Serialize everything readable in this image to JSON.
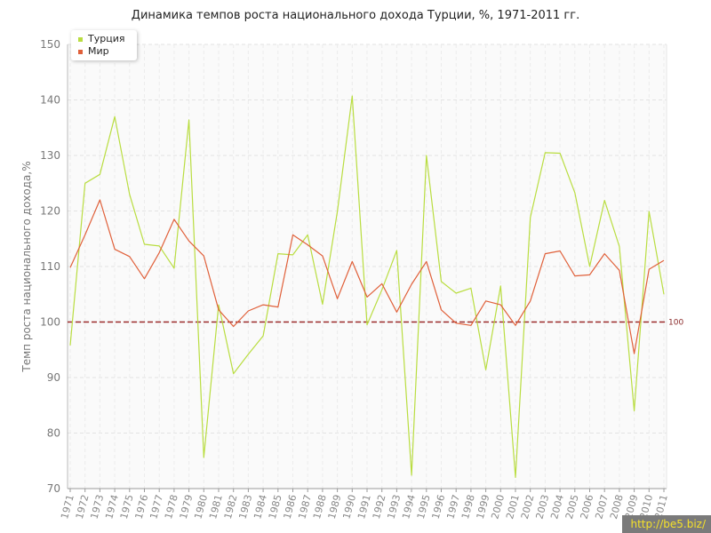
{
  "chart_data": {
    "type": "line",
    "title": "Динамика темпов роста национального дохода Турции, %, 1971-2011 гг.",
    "xlabel": "",
    "ylabel": "Темп роста национального дохода,%",
    "ylim": [
      70,
      150
    ],
    "yticks": [
      70,
      80,
      90,
      100,
      110,
      120,
      130,
      140,
      150
    ],
    "x": [
      1971,
      1972,
      1973,
      1974,
      1975,
      1976,
      1977,
      1978,
      1979,
      1980,
      1981,
      1982,
      1983,
      1984,
      1985,
      1986,
      1987,
      1988,
      1989,
      1990,
      1991,
      1992,
      1993,
      1994,
      1995,
      1996,
      1997,
      1998,
      1999,
      2000,
      2001,
      2002,
      2003,
      2004,
      2005,
      2006,
      2007,
      2008,
      2009,
      2010,
      2011
    ],
    "grid": true,
    "legend_position": "top-left",
    "series": [
      {
        "name": "Турция",
        "color": "#b9dd40",
        "values": [
          95.8,
          125.0,
          126.6,
          137.0,
          123.0,
          114.0,
          113.7,
          109.7,
          136.4,
          75.6,
          103.1,
          90.7,
          94.2,
          97.5,
          112.3,
          112.1,
          115.7,
          103.2,
          119.9,
          140.7,
          99.5,
          105.8,
          112.9,
          72.4,
          130.0,
          107.3,
          105.2,
          106.1,
          91.4,
          106.5,
          72.0,
          118.8,
          130.5,
          130.4,
          123.3,
          110.0,
          121.9,
          113.6,
          84.0,
          119.9,
          105.0
        ]
      },
      {
        "name": "Мир",
        "color": "#e0603a",
        "values": [
          109.8,
          115.7,
          122.0,
          113.1,
          111.8,
          107.8,
          112.5,
          118.5,
          114.6,
          111.9,
          102.2,
          99.2,
          102.0,
          103.1,
          102.7,
          115.7,
          113.9,
          111.9,
          104.2,
          110.9,
          104.5,
          106.9,
          101.8,
          106.8,
          110.9,
          102.2,
          99.8,
          99.4,
          103.8,
          103.1,
          99.4,
          103.8,
          112.3,
          112.8,
          108.3,
          108.5,
          112.3,
          109.3,
          94.3,
          109.5,
          111.1
        ]
      }
    ],
    "reference_line": {
      "value": 100,
      "label": "100",
      "color": "#9b2a2a",
      "style": "dashed"
    }
  },
  "watermark": "http://be5.biz/"
}
